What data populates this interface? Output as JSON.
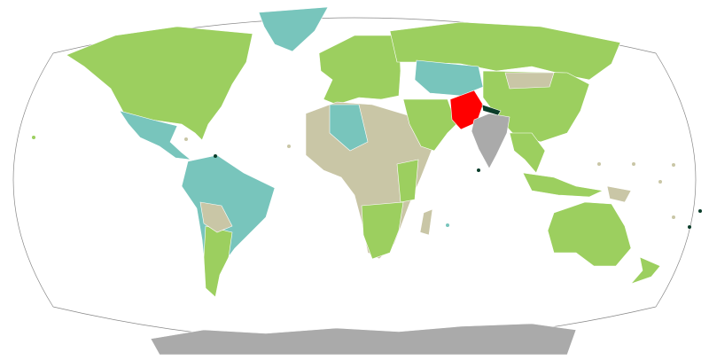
{
  "map": {
    "projection": "world",
    "colors": {
      "category_green": "#9ccf5f",
      "category_teal": "#78c5bc",
      "category_beige": "#c9c6a6",
      "highlight_red": "#ff0000",
      "category_gray": "#aaaaaa",
      "category_dark": "#0b3d2a",
      "ocean": "#ffffff",
      "outline": "#888888"
    },
    "regions": [
      {
        "id": "north-america",
        "fill": "category_green"
      },
      {
        "id": "greenland",
        "fill": "category_teal"
      },
      {
        "id": "mexico-central-america",
        "fill": "category_teal"
      },
      {
        "id": "south-america",
        "fill": "category_teal"
      },
      {
        "id": "south-america-south",
        "fill": "category_green"
      },
      {
        "id": "bolivia-paraguay",
        "fill": "category_beige"
      },
      {
        "id": "europe",
        "fill": "category_green"
      },
      {
        "id": "russia-north-asia",
        "fill": "category_green"
      },
      {
        "id": "central-asia",
        "fill": "category_teal"
      },
      {
        "id": "china-east-asia",
        "fill": "category_green"
      },
      {
        "id": "mongolia",
        "fill": "category_beige"
      },
      {
        "id": "africa",
        "fill": "category_beige"
      },
      {
        "id": "north-africa",
        "fill": "category_teal"
      },
      {
        "id": "southern-africa",
        "fill": "category_green"
      },
      {
        "id": "east-africa",
        "fill": "category_green"
      },
      {
        "id": "madagascar",
        "fill": "category_beige"
      },
      {
        "id": "middle-east",
        "fill": "category_green"
      },
      {
        "id": "pakistan",
        "fill": "highlight_red"
      },
      {
        "id": "india",
        "fill": "category_gray"
      },
      {
        "id": "nepal",
        "fill": "category_dark"
      },
      {
        "id": "southeast-asia",
        "fill": "category_green"
      },
      {
        "id": "indonesia",
        "fill": "category_green"
      },
      {
        "id": "papua",
        "fill": "category_beige"
      },
      {
        "id": "australia",
        "fill": "category_green"
      },
      {
        "id": "new-zealand",
        "fill": "category_green"
      },
      {
        "id": "antarctica",
        "fill": "category_gray"
      }
    ]
  }
}
